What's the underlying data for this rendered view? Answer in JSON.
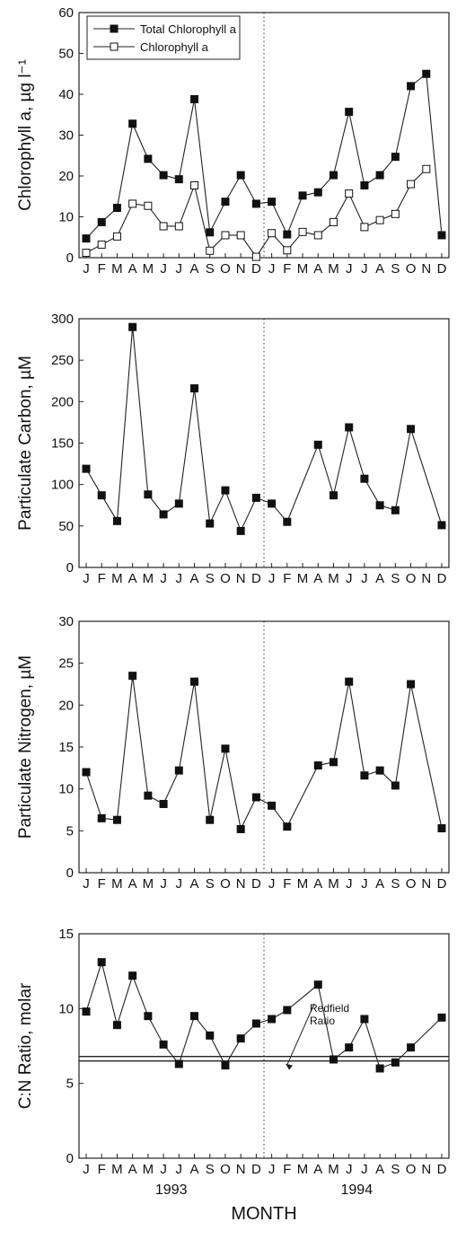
{
  "month_ticks": [
    "J",
    "F",
    "M",
    "A",
    "M",
    "J",
    "J",
    "A",
    "S",
    "O",
    "N",
    "D",
    "J",
    "F",
    "M",
    "A",
    "M",
    "J",
    "J",
    "A",
    "S",
    "O",
    "N",
    "D"
  ],
  "years": [
    "1993",
    "1994"
  ],
  "xlabel": "MONTH",
  "chart_data": [
    {
      "type": "line",
      "ylabel": "Chlorophyll a, µg l⁻¹",
      "ylim": [
        0,
        60
      ],
      "yticks": [
        "0",
        "10",
        "20",
        "30",
        "40",
        "50",
        "60"
      ],
      "legend_position": "top-left",
      "divider_x": 12.5,
      "series": [
        {
          "name": "Total Chlorophyll a",
          "marker": "filled-square",
          "points": [
            [
              1,
              4.7
            ],
            [
              2,
              8.7
            ],
            [
              3,
              12.2
            ],
            [
              4,
              32.8
            ],
            [
              5,
              24.2
            ],
            [
              6,
              20.2
            ],
            [
              7,
              19.2
            ],
            [
              8,
              38.8
            ],
            [
              9,
              6.2
            ],
            [
              10,
              13.7
            ],
            [
              11,
              20.2
            ],
            [
              12,
              13.2
            ],
            [
              13,
              13.7
            ],
            [
              14,
              5.7
            ],
            [
              15,
              15.2
            ],
            [
              16,
              16.0
            ],
            [
              17,
              20.2
            ],
            [
              18,
              35.7
            ],
            [
              19,
              17.7
            ],
            [
              20,
              20.2
            ],
            [
              21,
              24.7
            ],
            [
              22,
              42.0
            ],
            [
              23,
              45.0
            ],
            [
              24,
              5.5
            ]
          ]
        },
        {
          "name": "Chlorophyll a",
          "marker": "open-square",
          "points": [
            [
              1,
              1.2
            ],
            [
              2,
              3.2
            ],
            [
              3,
              5.2
            ],
            [
              4,
              13.2
            ],
            [
              5,
              12.7
            ],
            [
              6,
              7.7
            ],
            [
              7,
              7.7
            ],
            [
              8,
              17.7
            ],
            [
              9,
              1.7
            ],
            [
              10,
              5.5
            ],
            [
              11,
              5.5
            ],
            [
              12,
              0.2
            ],
            [
              13,
              6.0
            ],
            [
              14,
              1.8
            ],
            [
              15,
              6.3
            ],
            [
              16,
              5.5
            ],
            [
              17,
              8.7
            ],
            [
              18,
              15.7
            ],
            [
              19,
              7.5
            ],
            [
              20,
              9.2
            ],
            [
              21,
              10.7
            ],
            [
              22,
              18.0
            ],
            [
              23,
              21.7
            ]
          ]
        }
      ]
    },
    {
      "type": "line",
      "ylabel": "Particulate Carbon, µM",
      "ylim": [
        0,
        300
      ],
      "yticks": [
        "0",
        "50",
        "100",
        "150",
        "200",
        "250",
        "300"
      ],
      "divider_x": 12.5,
      "series": [
        {
          "marker": "filled-square",
          "points": [
            [
              1,
              119
            ],
            [
              2,
              87
            ],
            [
              3,
              56
            ],
            [
              4,
              290
            ],
            [
              5,
              88
            ],
            [
              6,
              64
            ],
            [
              7,
              77
            ],
            [
              8,
              216
            ],
            [
              9,
              53
            ],
            [
              10,
              93
            ],
            [
              11,
              44
            ],
            [
              12,
              84
            ],
            [
              13,
              77
            ],
            [
              14,
              55
            ],
            [
              16,
              148
            ],
            [
              17,
              87
            ],
            [
              18,
              169
            ],
            [
              19,
              107
            ],
            [
              20,
              75
            ],
            [
              21,
              69
            ],
            [
              22,
              167
            ],
            [
              24,
              51
            ]
          ]
        }
      ]
    },
    {
      "type": "line",
      "ylabel": "Particulate Nitrogen, µM",
      "ylim": [
        0,
        30
      ],
      "yticks": [
        "0",
        "5",
        "10",
        "15",
        "20",
        "25",
        "30"
      ],
      "divider_x": 12.5,
      "series": [
        {
          "marker": "filled-square",
          "points": [
            [
              1,
              12.0
            ],
            [
              2,
              6.5
            ],
            [
              3,
              6.3
            ],
            [
              4,
              23.5
            ],
            [
              5,
              9.2
            ],
            [
              6,
              8.2
            ],
            [
              7,
              12.2
            ],
            [
              8,
              22.8
            ],
            [
              9,
              6.3
            ],
            [
              10,
              14.8
            ],
            [
              11,
              5.2
            ],
            [
              12,
              9.0
            ],
            [
              13,
              8.0
            ],
            [
              14,
              5.5
            ],
            [
              16,
              12.8
            ],
            [
              17,
              13.2
            ],
            [
              18,
              22.8
            ],
            [
              19,
              11.6
            ],
            [
              20,
              12.2
            ],
            [
              21,
              10.4
            ],
            [
              22,
              22.5
            ],
            [
              24,
              5.3
            ]
          ]
        }
      ]
    },
    {
      "type": "line",
      "ylabel": "C:N Ratio, molar",
      "ylim": [
        0,
        15
      ],
      "yticks": [
        "0",
        "5",
        "10",
        "15"
      ],
      "divider_x": 12.5,
      "reference_band": {
        "y": [
          6.5,
          6.8
        ],
        "label": [
          "Redfield",
          "Ratio"
        ]
      },
      "series": [
        {
          "marker": "filled-square",
          "points": [
            [
              1,
              9.8
            ],
            [
              2,
              13.1
            ],
            [
              3,
              8.9
            ],
            [
              4,
              12.2
            ],
            [
              5,
              9.5
            ],
            [
              6,
              7.6
            ],
            [
              7,
              6.3
            ],
            [
              8,
              9.5
            ],
            [
              9,
              8.2
            ],
            [
              10,
              6.2
            ],
            [
              11,
              8.0
            ],
            [
              12,
              9.0
            ],
            [
              13,
              9.3
            ],
            [
              14,
              9.9
            ],
            [
              16,
              11.6
            ],
            [
              17,
              6.6
            ],
            [
              18,
              7.4
            ],
            [
              19,
              9.3
            ],
            [
              20,
              6.0
            ],
            [
              21,
              6.4
            ],
            [
              22,
              7.4
            ],
            [
              24,
              9.4
            ]
          ]
        }
      ]
    }
  ]
}
